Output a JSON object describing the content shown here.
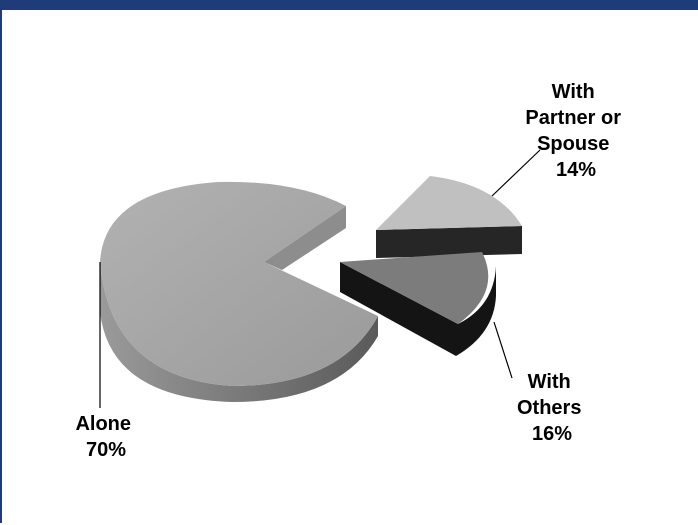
{
  "colors": {
    "frame": "#1f3c78",
    "alone_top": "#a6a6a6",
    "alone_side": "#7a7a7a",
    "partner_top": "#c0c0c0",
    "partner_side": "#262626",
    "others_top": "#7c7c7c",
    "others_side": "#141414"
  },
  "chart_data": {
    "type": "pie",
    "categories": [
      "Alone",
      "With Partner or Spouse",
      "With Others"
    ],
    "values": [
      70,
      14,
      16
    ],
    "unit": "%",
    "title": "",
    "legend": "none",
    "labels": [
      {
        "lines": [
          "Alone",
          "70%"
        ]
      },
      {
        "lines": [
          "With",
          "Partner or",
          "Spouse",
          "14%"
        ]
      },
      {
        "lines": [
          "With",
          "Others",
          "16%"
        ]
      }
    ]
  }
}
